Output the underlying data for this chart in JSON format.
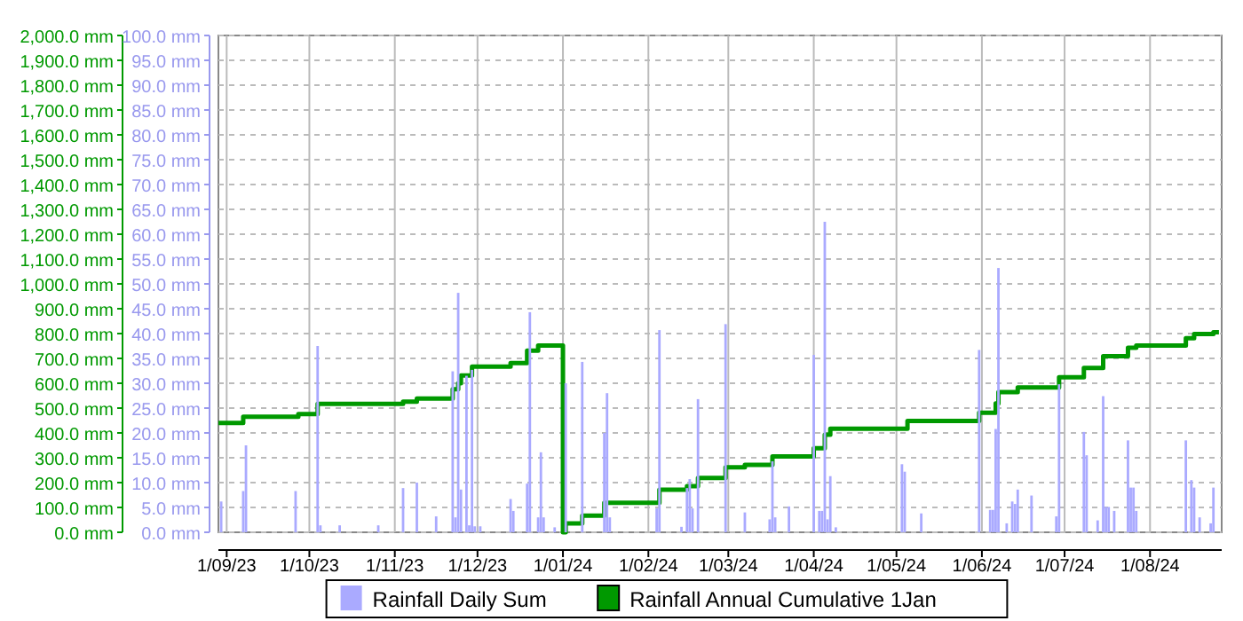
{
  "chart_data": {
    "type": "bar",
    "xlim": [
      "2023-08-29",
      "2024-08-27"
    ],
    "xticks": [
      {
        "value": "2023-09-01",
        "label": "1/09/23"
      },
      {
        "value": "2023-10-01",
        "label": "1/10/23"
      },
      {
        "value": "2023-11-01",
        "label": "1/11/23"
      },
      {
        "value": "2023-12-01",
        "label": "1/12/23"
      },
      {
        "value": "2024-01-01",
        "label": "1/01/24"
      },
      {
        "value": "2024-02-01",
        "label": "1/02/24"
      },
      {
        "value": "2024-03-01",
        "label": "1/03/24"
      },
      {
        "value": "2024-04-01",
        "label": "1/04/24"
      },
      {
        "value": "2024-05-01",
        "label": "1/05/24"
      },
      {
        "value": "2024-06-01",
        "label": "1/06/24"
      },
      {
        "value": "2024-07-01",
        "label": "1/07/24"
      },
      {
        "value": "2024-08-01",
        "label": "1/08/24"
      }
    ],
    "ylim": [
      0,
      2000
    ],
    "yticks": [
      {
        "value": 0,
        "label": "0.0 mm"
      },
      {
        "value": 100,
        "label": "100.0 mm"
      },
      {
        "value": 200,
        "label": "200.0 mm"
      },
      {
        "value": 300,
        "label": "300.0 mm"
      },
      {
        "value": 400,
        "label": "400.0 mm"
      },
      {
        "value": 500,
        "label": "500.0 mm"
      },
      {
        "value": 600,
        "label": "600.0 mm"
      },
      {
        "value": 700,
        "label": "700.0 mm"
      },
      {
        "value": 800,
        "label": "800.0 mm"
      },
      {
        "value": 900,
        "label": "900.0 mm"
      },
      {
        "value": 1000,
        "label": "1,000.0 mm"
      },
      {
        "value": 1100,
        "label": "1,100.0 mm"
      },
      {
        "value": 1200,
        "label": "1,200.0 mm"
      },
      {
        "value": 1300,
        "label": "1,300.0 mm"
      },
      {
        "value": 1400,
        "label": "1,400.0 mm"
      },
      {
        "value": 1500,
        "label": "1,500.0 mm"
      },
      {
        "value": 1600,
        "label": "1,600.0 mm"
      },
      {
        "value": 1700,
        "label": "1,700.0 mm"
      },
      {
        "value": 1800,
        "label": "1,800.0 mm"
      },
      {
        "value": 1900,
        "label": "1,900.0 mm"
      },
      {
        "value": 2000,
        "label": "2,000.0 mm"
      }
    ],
    "y2lim": [
      0,
      100
    ],
    "y2ticks": [
      {
        "value": 0,
        "label": "0.0 mm"
      },
      {
        "value": 5,
        "label": "5.0 mm"
      },
      {
        "value": 10,
        "label": "10.0 mm"
      },
      {
        "value": 15,
        "label": "15.0 mm"
      },
      {
        "value": 20,
        "label": "20.0 mm"
      },
      {
        "value": 25,
        "label": "25.0 mm"
      },
      {
        "value": 30,
        "label": "30.0 mm"
      },
      {
        "value": 35,
        "label": "35.0 mm"
      },
      {
        "value": 40,
        "label": "40.0 mm"
      },
      {
        "value": 45,
        "label": "45.0 mm"
      },
      {
        "value": 50,
        "label": "50.0 mm"
      },
      {
        "value": 55,
        "label": "55.0 mm"
      },
      {
        "value": 60,
        "label": "60.0 mm"
      },
      {
        "value": 65,
        "label": "65.0 mm"
      },
      {
        "value": 70,
        "label": "70.0 mm"
      },
      {
        "value": 75,
        "label": "75.0 mm"
      },
      {
        "value": 80,
        "label": "80.0 mm"
      },
      {
        "value": 85,
        "label": "85.0 mm"
      },
      {
        "value": 90,
        "label": "90.0 mm"
      },
      {
        "value": 95,
        "label": "95.0 mm"
      },
      {
        "value": 100,
        "label": "100.0 mm"
      }
    ],
    "grid": true,
    "legend": "bottom",
    "series": [
      {
        "name": "Rainfall Daily Sum",
        "axis": "y2",
        "color": "#aaaaff",
        "x": [
          "2023-08-30",
          "2023-09-07",
          "2023-09-08",
          "2023-09-26",
          "2023-10-04",
          "2023-10-05",
          "2023-10-12",
          "2023-10-26",
          "2023-11-04",
          "2023-11-09",
          "2023-11-16",
          "2023-11-22",
          "2023-11-23",
          "2023-11-24",
          "2023-11-25",
          "2023-11-27",
          "2023-11-28",
          "2023-11-29",
          "2023-11-30",
          "2023-12-02",
          "2023-12-13",
          "2023-12-14",
          "2023-12-19",
          "2023-12-20",
          "2023-12-23",
          "2023-12-24",
          "2023-12-25",
          "2023-12-29",
          "2024-01-02",
          "2024-01-08",
          "2024-01-16",
          "2024-01-17",
          "2024-01-18",
          "2024-02-04",
          "2024-02-05",
          "2024-02-13",
          "2024-02-15",
          "2024-02-16",
          "2024-02-17",
          "2024-02-19",
          "2024-02-29",
          "2024-03-07",
          "2024-03-16",
          "2024-03-17",
          "2024-03-18",
          "2024-03-23",
          "2024-04-01",
          "2024-04-03",
          "2024-04-04",
          "2024-04-05",
          "2024-04-06",
          "2024-04-07",
          "2024-04-09",
          "2024-05-03",
          "2024-05-04",
          "2024-05-10",
          "2024-05-31",
          "2024-06-04",
          "2024-06-05",
          "2024-06-06",
          "2024-06-07",
          "2024-06-10",
          "2024-06-12",
          "2024-06-13",
          "2024-06-14",
          "2024-06-19",
          "2024-06-28",
          "2024-06-29",
          "2024-07-08",
          "2024-07-09",
          "2024-07-13",
          "2024-07-15",
          "2024-07-16",
          "2024-07-17",
          "2024-07-19",
          "2024-07-24",
          "2024-07-25",
          "2024-07-26",
          "2024-07-27",
          "2024-08-14",
          "2024-08-16",
          "2024-08-17",
          "2024-08-19",
          "2024-08-23",
          "2024-08-24"
        ],
        "values": [
          6.2,
          8.3,
          17.5,
          8.3,
          37.5,
          1.4,
          1.4,
          1.4,
          8.9,
          10,
          3.2,
          32.4,
          3,
          48.2,
          8.6,
          31.5,
          1.4,
          32.7,
          1.2,
          1.2,
          6.7,
          4.3,
          9.8,
          44.3,
          3,
          16.1,
          3,
          1,
          30,
          34.3,
          20,
          28,
          3,
          4.8,
          40.7,
          1.1,
          8.9,
          10.7,
          4.8,
          26.8,
          41.9,
          4,
          2.6,
          14.3,
          3,
          5.2,
          35.7,
          4.3,
          4.3,
          62.5,
          2.6,
          11.3,
          1,
          13.7,
          12.2,
          3.8,
          36.7,
          4.5,
          4.5,
          20.8,
          53.2,
          1.8,
          6.2,
          5.7,
          8.6,
          7.4,
          3.2,
          29.8,
          20.2,
          15.5,
          2.4,
          27.4,
          5.1,
          5.1,
          4.3,
          18.5,
          9,
          9,
          4.3,
          18.5,
          10.5,
          9,
          3,
          1.8,
          9
        ]
      },
      {
        "name": "Rainfall Annual Cumulative 1Jan",
        "type": "step",
        "color": "#009900",
        "x": [
          "2023-08-29",
          "2023-09-07",
          "2023-09-27",
          "2023-10-04",
          "2023-11-04",
          "2023-11-09",
          "2023-11-22",
          "2023-11-24",
          "2023-11-25",
          "2023-11-29",
          "2023-12-13",
          "2023-12-19",
          "2023-12-23",
          "2024-01-01",
          "2024-01-02",
          "2024-01-08",
          "2024-01-16",
          "2024-02-05",
          "2024-02-15",
          "2024-02-19",
          "2024-02-29",
          "2024-03-07",
          "2024-03-17",
          "2024-04-01",
          "2024-04-05",
          "2024-04-07",
          "2024-05-05",
          "2024-05-31",
          "2024-06-06",
          "2024-06-07",
          "2024-06-14",
          "2024-06-29",
          "2024-07-08",
          "2024-07-15",
          "2024-07-24",
          "2024-07-27",
          "2024-08-14",
          "2024-08-17",
          "2024-08-24",
          "2024-08-26"
        ],
        "values": [
          440,
          465,
          476,
          517,
          526,
          538,
          576,
          600,
          631,
          667,
          681,
          731,
          752,
          0,
          36,
          67,
          119,
          171,
          186,
          219,
          262,
          271,
          305,
          338,
          393,
          417,
          448,
          481,
          519,
          564,
          583,
          624,
          662,
          709,
          743,
          752,
          781,
          798,
          805,
          805
        ]
      }
    ]
  }
}
